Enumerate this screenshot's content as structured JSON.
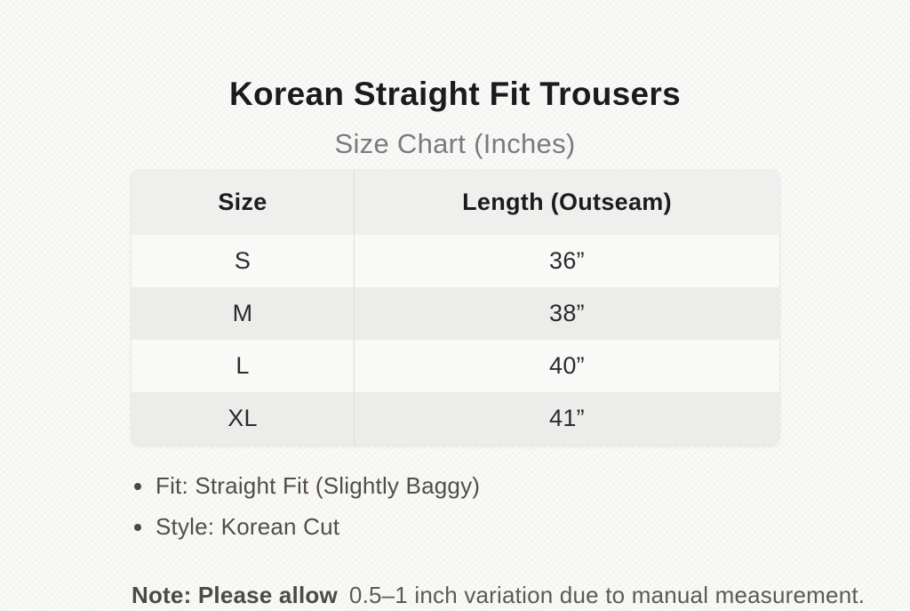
{
  "header": {
    "title": "Korean Straight Fit Trousers",
    "subtitle": "Size Chart (Inches)"
  },
  "chart_data": {
    "type": "table",
    "title": "Korean Straight Fit Trousers",
    "subtitle": "Size Chart (Inches)",
    "columns": [
      "Size",
      "Length (Outseam)"
    ],
    "rows": [
      [
        "S",
        "36”"
      ],
      [
        "M",
        "38”"
      ],
      [
        "L",
        "40”"
      ],
      [
        "XL",
        "41”"
      ]
    ]
  },
  "details": {
    "bullets": [
      "Fit: Straight Fit (Slightly Baggy)",
      "Style: Korean Cut"
    ],
    "note": {
      "label": "Note: Please allow",
      "text": "0.5–1 inch variation due to manual measurement."
    }
  },
  "colors": {
    "background": "#f7f6f4",
    "title_text": "#1b1b1b",
    "subtitle_text": "#7b7b7b",
    "table_header_bg": "#efefee",
    "table_row_light_bg": "#f9f9f8",
    "table_row_dark_bg": "#ececeb",
    "table_divider": "#dcdcda",
    "cell_text": "#2b2b2b",
    "notes_text": "#504e4b"
  }
}
